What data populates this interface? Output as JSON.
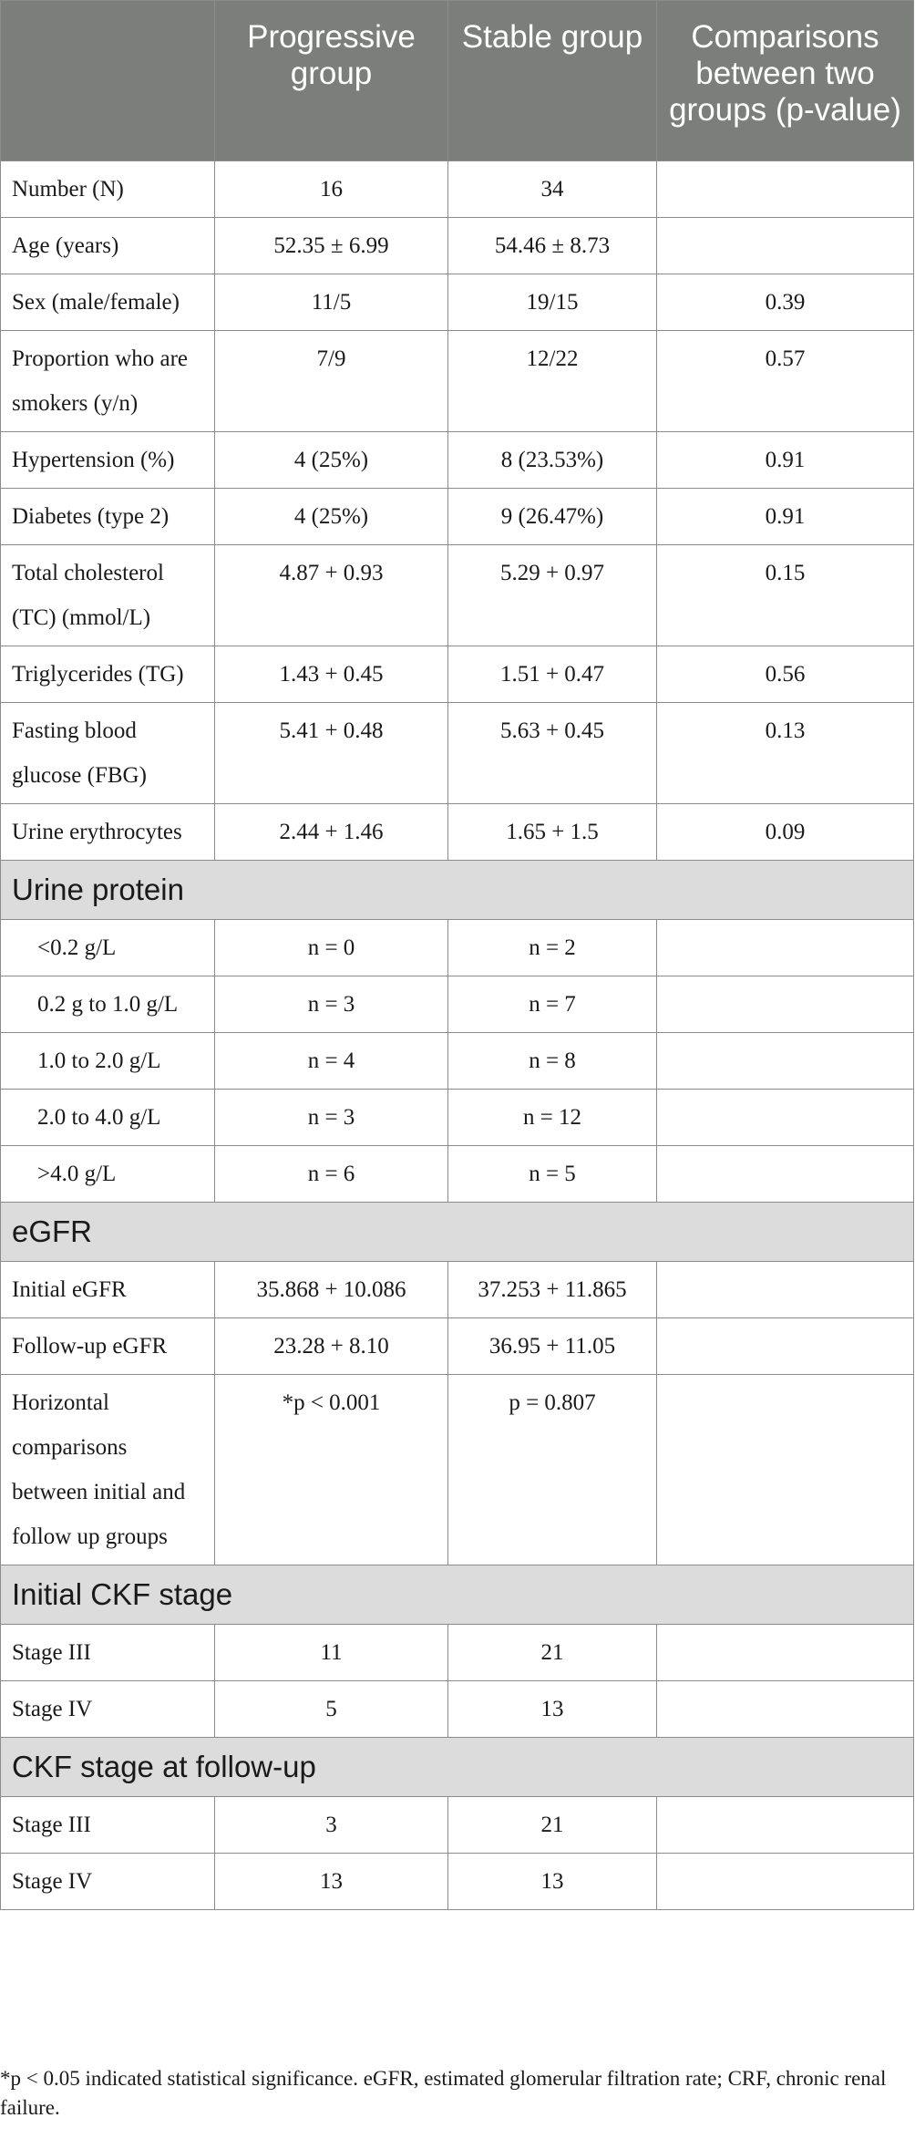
{
  "header": [
    "",
    "Progressive group",
    "Stable group",
    "Comparisons between two groups (p-value)"
  ],
  "rows": [
    {
      "type": "row",
      "label": "Number (N)",
      "progressive": "16",
      "stable": "34",
      "p": ""
    },
    {
      "type": "row",
      "label": "Age (years)",
      "progressive": "52.35 ± 6.99",
      "stable": "54.46 ± 8.73",
      "p": ""
    },
    {
      "type": "row",
      "label": "Sex (male/female)",
      "progressive": "11/5",
      "stable": "19/15",
      "p": "0.39"
    },
    {
      "type": "row",
      "label": "Proportion who are smokers (y/n)",
      "progressive": "7/9",
      "stable": "12/22",
      "p": "0.57"
    },
    {
      "type": "row",
      "label": "Hypertension (%)",
      "progressive": "4 (25%)",
      "stable": "8 (23.53%)",
      "p": "0.91"
    },
    {
      "type": "row",
      "label": "Diabetes (type 2)",
      "progressive": "4 (25%)",
      "stable": "9 (26.47%)",
      "p": "0.91"
    },
    {
      "type": "row",
      "label": "Total cholesterol (TC) (mmol/L)",
      "progressive": "4.87 + 0.93",
      "stable": "5.29 + 0.97",
      "p": "0.15"
    },
    {
      "type": "row",
      "label": "Triglycerides (TG)",
      "progressive": "1.43 + 0.45",
      "stable": "1.51 + 0.47",
      "p": "0.56"
    },
    {
      "type": "row",
      "label": "Fasting blood glucose (FBG)",
      "progressive": "5.41 + 0.48",
      "stable": "5.63 + 0.45",
      "p": "0.13"
    },
    {
      "type": "row",
      "label": "Urine erythrocytes",
      "progressive": "2.44 + 1.46",
      "stable": "1.65 + 1.5",
      "p": "0.09"
    },
    {
      "type": "section",
      "label": "Urine protein"
    },
    {
      "type": "row",
      "indent": true,
      "label": "<0.2 g/L",
      "progressive": "n = 0",
      "stable": "n = 2",
      "p": ""
    },
    {
      "type": "row",
      "indent": true,
      "label": "0.2 g to 1.0 g/L",
      "progressive": "n = 3",
      "stable": "n = 7",
      "p": ""
    },
    {
      "type": "row",
      "indent": true,
      "label": "1.0 to 2.0 g/L",
      "progressive": "n = 4",
      "stable": "n = 8",
      "p": ""
    },
    {
      "type": "row",
      "indent": true,
      "label": "2.0 to 4.0 g/L",
      "progressive": "n = 3",
      "stable": "n = 12",
      "p": ""
    },
    {
      "type": "row",
      "indent": true,
      "label": ">4.0 g/L",
      "progressive": "n = 6",
      "stable": "n = 5",
      "p": ""
    },
    {
      "type": "section",
      "label": "eGFR"
    },
    {
      "type": "row",
      "label": "Initial eGFR",
      "progressive": "35.868 + 10.086",
      "stable": "37.253 + 11.865",
      "p": ""
    },
    {
      "type": "row",
      "label": "Follow-up eGFR",
      "progressive": "23.28 + 8.10",
      "stable": "36.95 + 11.05",
      "p": ""
    },
    {
      "type": "row",
      "label": "Horizontal comparisons between initial and follow up groups",
      "progressive": "*p < 0.001",
      "stable": "p = 0.807",
      "p": ""
    },
    {
      "type": "section",
      "label": "Initial CKF stage"
    },
    {
      "type": "row",
      "label": "Stage III",
      "progressive": "11",
      "stable": "21",
      "p": ""
    },
    {
      "type": "row",
      "label": "Stage IV",
      "progressive": "5",
      "stable": "13",
      "p": ""
    },
    {
      "type": "section",
      "label": "CKF stage at follow-up"
    },
    {
      "type": "row",
      "label": "Stage III",
      "progressive": "3",
      "stable": "21",
      "p": ""
    },
    {
      "type": "row",
      "label": "Stage IV",
      "progressive": "13",
      "stable": "13",
      "p": ""
    }
  ],
  "footnote": "*p < 0.05 indicated statistical significance. eGFR, estimated glomerular filtration rate; CRF, chronic renal failure."
}
